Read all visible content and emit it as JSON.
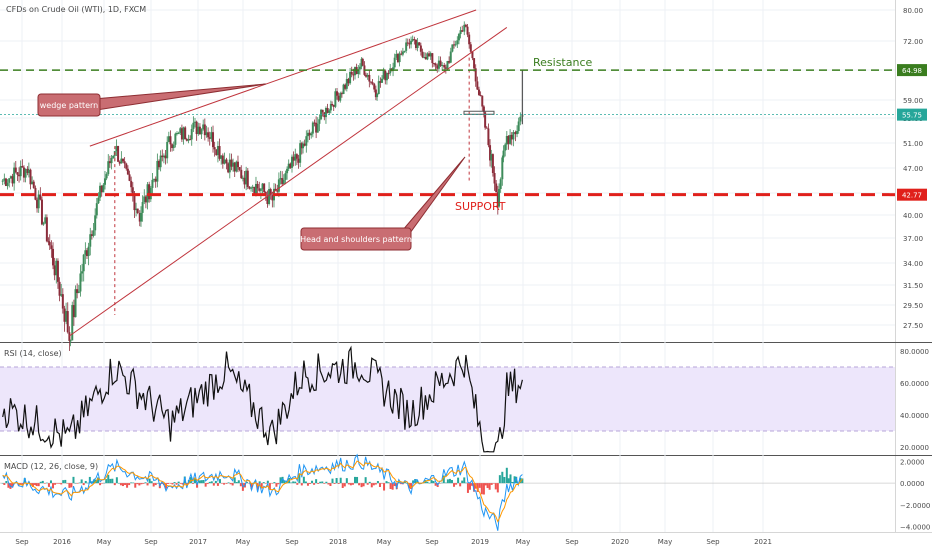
{
  "header": {
    "symbol_title": "CFDs on Crude Oil (WTI), 1D, FXCM"
  },
  "chart_data": [
    {
      "type": "line",
      "title": "CFDs on Crude Oil (WTI), 1D, FXCM",
      "ylim": [
        25.5,
        81.0
      ],
      "y_ticks": [
        80.0,
        72.0,
        65.0,
        59.0,
        55.0,
        51.0,
        47.0,
        43.0,
        40.0,
        37.0,
        34.0,
        31.5,
        29.5,
        27.5
      ],
      "y_tick_labels": [
        "80.00",
        "72.00",
        "65.00",
        "59.00",
        "55.00",
        "51.00",
        "47.00",
        "43.00",
        "40.00",
        "37.00",
        "34.00",
        "31.50",
        "29.50",
        "27.50"
      ],
      "x_tick_labels": [
        "Sep",
        "2016",
        "May",
        "Sep",
        "2017",
        "May",
        "Sep",
        "2018",
        "May",
        "Sep",
        "2019",
        "May",
        "Sep",
        "2020",
        "May",
        "Sep",
        "2021"
      ],
      "series": [
        {
          "x": [
            "2015-09-01",
            "2015-11-01",
            "2016-02-11",
            "2016-06-01",
            "2016-08-01",
            "2016-10-15",
            "2017-01-03",
            "2017-03-01",
            "2017-06-21",
            "2017-09-01",
            "2018-01-25",
            "2018-03-01",
            "2018-05-22",
            "2018-08-15",
            "2018-10-03",
            "2018-11-20",
            "2018-12-24",
            "2019-01-15",
            "2019-02-05",
            "2019-02-22"
          ],
          "values": [
            45.0,
            47.0,
            26.5,
            50.5,
            40.0,
            51.5,
            54.0,
            48.0,
            42.0,
            50.0,
            66.5,
            61.0,
            72.0,
            65.0,
            76.5,
            55.0,
            42.5,
            52.0,
            53.0,
            55.75
          ]
        }
      ],
      "price_labels": [
        {
          "label": "Resistance",
          "value": 64.98,
          "value_label": "64.98",
          "color": "#3a7d1f"
        },
        {
          "label": "SUPPORT",
          "value": 42.77,
          "value_label": "42.77",
          "color": "#e0201b"
        },
        {
          "label": "",
          "value": 55.75,
          "value_label": "55.75",
          "color": "#26a69a"
        }
      ],
      "annotations": [
        "wedge pattern",
        "Head and shoulders pattern"
      ]
    },
    {
      "type": "line",
      "title": "RSI (14, close)",
      "ylim": [
        15,
        85
      ],
      "y_ticks": [
        80,
        60,
        40,
        20
      ],
      "y_tick_labels": [
        "80.0000",
        "60.0000",
        "40.0000",
        "20.0000"
      ],
      "band": [
        30,
        70
      ],
      "series": [
        {
          "x": [
            "2015-09-01",
            "2016-02-11",
            "2016-06-01",
            "2016-10-15",
            "2017-03-01",
            "2017-06-21",
            "2017-09-01",
            "2018-01-25",
            "2018-05-22",
            "2018-10-03",
            "2018-11-20",
            "2018-12-24",
            "2019-01-15",
            "2019-02-22"
          ],
          "values": [
            45,
            25,
            70,
            35,
            68,
            28,
            65,
            72,
            40,
            75,
            20,
            15,
            55,
            62
          ]
        }
      ]
    },
    {
      "type": "bar",
      "title": "MACD (12, 26, close, 9)",
      "ylim": [
        -4.5,
        2.5
      ],
      "y_ticks": [
        2.0,
        0.0,
        -2.0,
        -4.0
      ],
      "y_tick_labels": [
        "2.0000",
        "0.0000",
        "−2.0000",
        "−4.0000"
      ],
      "series": [
        {
          "name": "MACD",
          "x": [
            "2015-09-01",
            "2016-02-11",
            "2016-06-01",
            "2016-10-15",
            "2017-03-01",
            "2017-06-21",
            "2017-09-01",
            "2018-01-25",
            "2018-05-22",
            "2018-10-03",
            "2018-11-20",
            "2018-12-24",
            "2019-01-15",
            "2019-02-22"
          ],
          "values": [
            0.5,
            -1.2,
            1.5,
            -0.3,
            1.0,
            -0.8,
            1.2,
            2.0,
            -0.5,
            1.5,
            -2.5,
            -3.8,
            -0.5,
            0.8
          ]
        }
      ]
    }
  ]
}
